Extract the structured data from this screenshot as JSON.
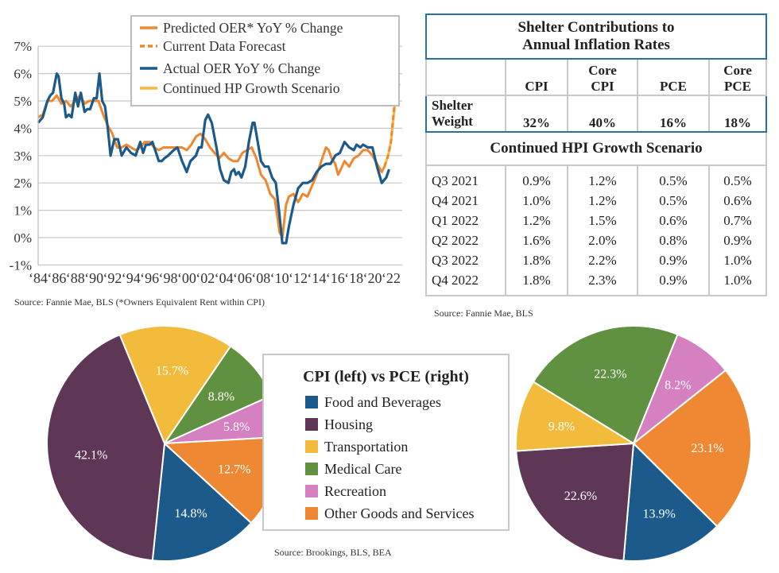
{
  "line_chart": {
    "source": "Source: Fannie Mae, BLS (*Owners Equivalent Rent within CPI)",
    "legend": [
      {
        "label": "Predicted OER* YoY % Change",
        "color": "#f0872f",
        "style": "solid"
      },
      {
        "label": "Current Data Forecast",
        "color": "#f0872f",
        "style": "dashed"
      },
      {
        "label": "Actual OER YoY % Change",
        "color": "#1b5a8a",
        "style": "solid"
      },
      {
        "label": "Continued HP Growth Scenario",
        "color": "#f7b938",
        "style": "solid"
      }
    ]
  },
  "chart_data": [
    {
      "type": "line",
      "title": "",
      "xlabel": "",
      "ylabel": "",
      "ylim": [
        -1,
        7
      ],
      "xlim": [
        1984,
        2023.2
      ],
      "grid": true,
      "legend_position": "top-right",
      "y_ticks": [
        "-1%",
        "0%",
        "1%",
        "2%",
        "3%",
        "4%",
        "5%",
        "6%",
        "7%"
      ],
      "x_ticks": [
        "‘84",
        "‘86",
        "‘88",
        "‘90",
        "‘92",
        "‘94",
        "‘96",
        "‘98",
        "‘00",
        "‘02",
        "‘04",
        "‘06",
        "‘08",
        "‘10",
        "‘12",
        "‘14",
        "‘16",
        "‘18",
        "‘20",
        "‘22"
      ],
      "series": [
        {
          "name": "Predicted OER* YoY % Change",
          "color": "#f0872f",
          "x": [
            1984,
            1984.5,
            1985,
            1985.5,
            1986,
            1986.5,
            1987,
            1987.5,
            1988,
            1988.5,
            1989,
            1989.5,
            1990,
            1990.5,
            1991,
            1991.5,
            1992,
            1992.5,
            1993,
            1993.5,
            1994,
            1994.5,
            1995,
            1995.5,
            1996,
            1996.5,
            1997,
            1997.5,
            1998,
            1998.5,
            1999,
            1999.5,
            2000,
            2000.5,
            2001,
            2001.5,
            2002,
            2002.5,
            2003,
            2003.5,
            2004,
            2004.5,
            2005,
            2005.5,
            2006,
            2006.5,
            2007,
            2007.5,
            2008,
            2008.5,
            2009,
            2009.5,
            2010,
            2010.3,
            2010.7,
            2011,
            2011.5,
            2012,
            2012.5,
            2013,
            2013.5,
            2014,
            2014.5,
            2015,
            2015.3,
            2015.6,
            2016,
            2016.3,
            2016.6,
            2017,
            2017.5,
            2018,
            2018.5,
            2019,
            2019.5,
            2020,
            2020.5,
            2021,
            2021.3
          ],
          "y": [
            4.4,
            4.5,
            5.0,
            5.0,
            5.2,
            4.9,
            5.0,
            4.8,
            5.0,
            5.2,
            4.9,
            5.0,
            5.0,
            5.0,
            4.5,
            4.1,
            3.8,
            3.3,
            3.3,
            3.4,
            3.3,
            3.2,
            3.3,
            3.5,
            3.5,
            3.3,
            3.2,
            3.3,
            3.3,
            3.3,
            3.3,
            3.3,
            3.2,
            3.4,
            3.7,
            3.8,
            3.6,
            3.3,
            3.1,
            2.9,
            3.1,
            2.9,
            2.8,
            2.8,
            3.1,
            3.2,
            3.3,
            2.9,
            2.3,
            2.1,
            1.6,
            1.4,
            0.2,
            0.0,
            1.2,
            1.5,
            1.6,
            1.3,
            1.6,
            1.5,
            1.9,
            2.3,
            2.8,
            3.3,
            3.2,
            2.9,
            2.7,
            2.3,
            2.5,
            2.8,
            2.6,
            2.9,
            3.0,
            3.2,
            3.2,
            3.0,
            2.7,
            2.4,
            2.6
          ]
        },
        {
          "name": "Current Data Forecast",
          "color": "#f0872f",
          "x": [
            2021.3,
            2021.7,
            2022,
            2022.3,
            2022.6
          ],
          "y": [
            2.6,
            3.0,
            3.5,
            4.6,
            5.5
          ]
        },
        {
          "name": "Actual OER YoY % Change",
          "color": "#1b5a8a",
          "x": [
            1984,
            1984.5,
            1985,
            1985.3,
            1985.6,
            1986,
            1986.2,
            1986.5,
            1986.8,
            1987,
            1987.3,
            1987.6,
            1988,
            1988.3,
            1988.6,
            1989,
            1989.3,
            1989.6,
            1990,
            1990.3,
            1990.6,
            1990.9,
            1991.2,
            1991.5,
            1991.8,
            1992.2,
            1992.6,
            1993,
            1993.5,
            1994,
            1994.5,
            1995,
            1995.3,
            1995.6,
            1996,
            1996.3,
            1996.6,
            1997,
            1997.3,
            1997.6,
            1998,
            1998.6,
            1999,
            1999.5,
            2000,
            2000.4,
            2001,
            2001.3,
            2001.6,
            2002,
            2002.3,
            2002.7,
            2003.2,
            2003.6,
            2004,
            2004.5,
            2004.8,
            2005.1,
            2005.3,
            2005.6,
            2005.9,
            2006.3,
            2006.7,
            2007.1,
            2007.3,
            2007.7,
            2008,
            2008.4,
            2008.8,
            2009.2,
            2009.6,
            2010,
            2010.3,
            2010.7,
            2011,
            2011.5,
            2012,
            2012.5,
            2013,
            2013.5,
            2014,
            2014.5,
            2015,
            2015.5,
            2016,
            2016.5,
            2017,
            2017.5,
            2018,
            2018.3,
            2018.7,
            2019,
            2019.5,
            2020,
            2020.5,
            2021,
            2021.5,
            2021.8
          ],
          "y": [
            4.2,
            4.4,
            5.0,
            5.2,
            5.3,
            6.0,
            5.9,
            5.1,
            4.9,
            4.4,
            4.5,
            4.4,
            5.3,
            4.8,
            5.3,
            4.6,
            4.7,
            4.7,
            5.1,
            5.1,
            6.0,
            5.0,
            4.8,
            4.0,
            3.0,
            3.6,
            3.6,
            3.0,
            3.3,
            3.1,
            3.0,
            3.5,
            3.1,
            3.4,
            3.4,
            3.5,
            3.2,
            2.8,
            2.8,
            2.9,
            3.0,
            3.2,
            3.3,
            2.8,
            2.4,
            2.8,
            3.0,
            3.3,
            3.3,
            4.3,
            4.5,
            4.2,
            3.3,
            2.5,
            2.1,
            2.0,
            2.4,
            2.5,
            2.3,
            2.4,
            2.2,
            2.6,
            3.5,
            4.2,
            4.2,
            3.4,
            2.8,
            2.6,
            2.6,
            2.2,
            2.0,
            0.8,
            -0.2,
            -0.2,
            0.4,
            1.2,
            1.8,
            2.0,
            2.0,
            2.1,
            2.4,
            2.6,
            2.7,
            2.7,
            3.0,
            3.1,
            3.5,
            3.3,
            3.2,
            3.4,
            3.3,
            3.4,
            3.3,
            3.3,
            2.6,
            2.0,
            2.2,
            2.5
          ]
        },
        {
          "name": "Continued HP Growth Scenario",
          "color": "#f7b938",
          "x": [
            2021.3,
            2021.7,
            2022,
            2022.4,
            2022.7,
            2023
          ],
          "y": [
            2.6,
            3.0,
            3.5,
            4.8,
            5.6,
            5.6
          ]
        }
      ]
    },
    {
      "type": "pie",
      "title": "CPI (left)  vs PCE (right)",
      "legend_position": "center",
      "categories": [
        "Food and Beverages",
        "Housing",
        "Transportation",
        "Medical Care",
        "Recreation",
        "Other Goods and Services"
      ],
      "colors": [
        "#1b5a8a",
        "#5e3757",
        "#f2bb3c",
        "#5f9140",
        "#d580c0",
        "#ee8832"
      ],
      "series": [
        {
          "name": "CPI (left)",
          "values": [
            14.8,
            42.1,
            15.7,
            8.8,
            5.8,
            12.7
          ],
          "labels": [
            "14.8%",
            "42.1%",
            "15.7%",
            "8.8%",
            "5.8%",
            "12.7%"
          ]
        },
        {
          "name": "PCE (right)",
          "values": [
            13.9,
            22.6,
            9.8,
            22.3,
            8.2,
            23.1
          ],
          "labels": [
            "13.9%",
            "22.6%",
            "9.8%",
            "22.3%",
            "8.2%",
            "23.1%"
          ]
        }
      ]
    }
  ],
  "table": {
    "title_line1": "Shelter Contributions to",
    "title_line2": "Annual Inflation Rates",
    "headers": [
      [
        "CPI"
      ],
      [
        "Core",
        "CPI"
      ],
      [
        "PCE"
      ],
      [
        "Core",
        "PCE"
      ]
    ],
    "shelter_label_1": "Shelter",
    "shelter_label_2": "Weight",
    "shelter_values": [
      "32%",
      "40%",
      "16%",
      "18%"
    ],
    "subtitle": "Continued HPI Growth Scenario",
    "rows": [
      {
        "period": "Q3 2021",
        "values": [
          "0.9%",
          "1.2%",
          "0.5%",
          "0.5%"
        ]
      },
      {
        "period": "Q4 2021",
        "values": [
          "1.0%",
          "1.2%",
          "0.5%",
          "0.6%"
        ]
      },
      {
        "period": "Q1 2022",
        "values": [
          "1.2%",
          "1.5%",
          "0.6%",
          "0.7%"
        ]
      },
      {
        "period": "Q2 2022",
        "values": [
          "1.6%",
          "2.0%",
          "0.8%",
          "0.9%"
        ]
      },
      {
        "period": "Q3 2022",
        "values": [
          "1.8%",
          "2.2%",
          "0.9%",
          "1.0%"
        ]
      },
      {
        "period": "Q4 2022",
        "values": [
          "1.8%",
          "2.3%",
          "0.9%",
          "1.0%"
        ]
      }
    ],
    "source": "Source: Fannie Mae, BLS"
  },
  "pie_source": "Source: Brookings, BLS, BEA"
}
